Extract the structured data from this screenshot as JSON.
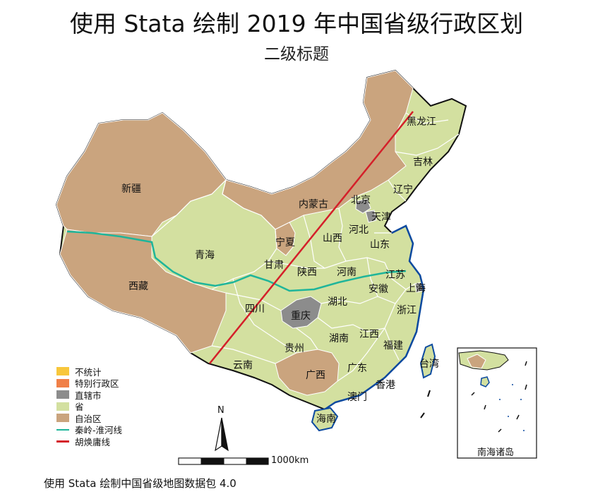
{
  "title": "使用 Stata 绘制 2019 年中国省级行政区划",
  "subtitle": "二级标题",
  "footnote": "使用 Stata 绘制中国省级地图数据包 4.0",
  "scale_bar": {
    "label": "1000km"
  },
  "north_arrow": {
    "label": "N"
  },
  "inset": {
    "label": "南海诸岛"
  },
  "colors": {
    "province": "#d3e0a0",
    "autonomous": "#caa47e",
    "municipality": "#8c8c8c",
    "sar": "#f08048",
    "none": "#f8c73c",
    "qinling": "#1fb59a",
    "hu_line": "#d4202a",
    "coast": "#0c4aa0",
    "border": "#ffffff",
    "outline": "#111111"
  },
  "legend": [
    {
      "label": "不统计",
      "type": "fill",
      "color": "#f8c73c"
    },
    {
      "label": "特别行政区",
      "type": "fill",
      "color": "#f08048"
    },
    {
      "label": "直辖市",
      "type": "fill",
      "color": "#8c8c8c"
    },
    {
      "label": "省",
      "type": "fill",
      "color": "#d3e0a0"
    },
    {
      "label": "自治区",
      "type": "fill",
      "color": "#caa47e"
    },
    {
      "label": "秦岭-淮河线",
      "type": "line",
      "color": "#1fb59a"
    },
    {
      "label": "胡焕庸线",
      "type": "line",
      "color": "#d4202a"
    }
  ],
  "regions": {
    "xinjiang": "新疆",
    "xizang": "西藏",
    "qinghai": "青海",
    "gansu": "甘肃",
    "neimenggu": "内蒙古",
    "ningxia": "宁夏",
    "shaanxi": "陕西",
    "shanxi": "山西",
    "hebei": "河北",
    "beijing": "北京",
    "tianjin": "天津",
    "liaoning": "辽宁",
    "jilin": "吉林",
    "heilongjiang": "黑龙江",
    "shandong": "山东",
    "henan": "河南",
    "jiangsu": "江苏",
    "anhui": "安徽",
    "shanghai": "上海",
    "hubei": "湖北",
    "sichuan": "四川",
    "chongqing": "重庆",
    "zhejiang": "浙江",
    "hunan": "湖南",
    "jiangxi": "江西",
    "guizhou": "贵州",
    "fujian": "福建",
    "taiwan": "台湾",
    "yunnan": "云南",
    "guangxi": "广西",
    "guangdong": "广东",
    "xianggang": "香港",
    "aomen": "澳门",
    "hainan": "海南"
  }
}
